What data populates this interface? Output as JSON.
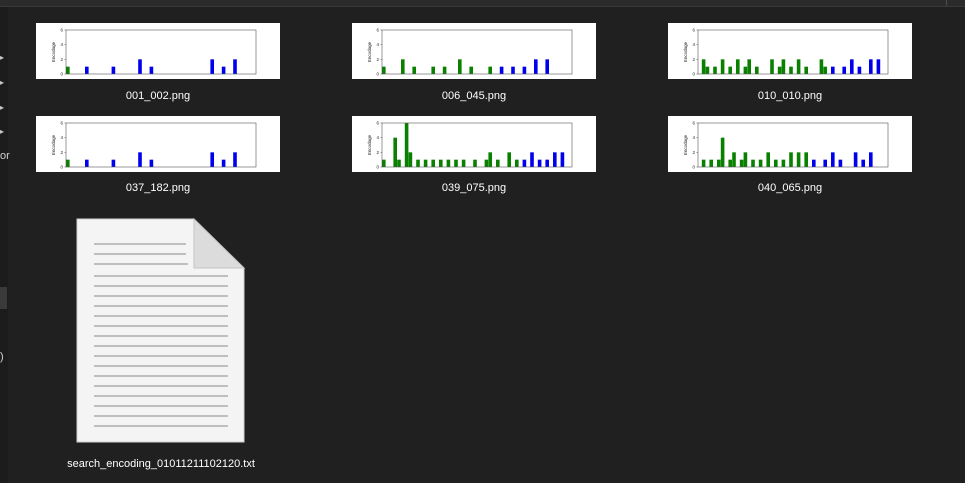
{
  "left_pane": {
    "text_1": "or",
    "text_2": ")"
  },
  "colors": {
    "green": "#0a8000",
    "blue": "#0000ee",
    "bg": "#202020"
  },
  "files": [
    {
      "name": "001_002.png",
      "ylabel": "Encodage",
      "yticks": [
        "6",
        "4",
        "2",
        "0"
      ],
      "bars": [
        [
          0,
          1,
          "g"
        ],
        [
          5,
          1,
          "b"
        ],
        [
          12,
          1,
          "b"
        ],
        [
          19,
          2,
          "b"
        ],
        [
          22,
          1,
          "b"
        ],
        [
          38,
          2,
          "b"
        ],
        [
          41,
          1,
          "b"
        ],
        [
          44,
          2,
          "b"
        ]
      ]
    },
    {
      "name": "006_045.png",
      "ylabel": "Encodage",
      "yticks": [
        "6",
        "4",
        "2",
        "0"
      ],
      "bars": [
        [
          0,
          1,
          "g"
        ],
        [
          5,
          2,
          "g"
        ],
        [
          8,
          1,
          "g"
        ],
        [
          13,
          1,
          "g"
        ],
        [
          16,
          1,
          "g"
        ],
        [
          20,
          2,
          "g"
        ],
        [
          23,
          1,
          "g"
        ],
        [
          28,
          1,
          "g"
        ],
        [
          31,
          1,
          "b"
        ],
        [
          34,
          1,
          "b"
        ],
        [
          37,
          1,
          "b"
        ],
        [
          40,
          2,
          "b"
        ],
        [
          43,
          2,
          "b"
        ]
      ]
    },
    {
      "name": "010_010.png",
      "ylabel": "Encodage",
      "yticks": [
        "6",
        "4",
        "2",
        "0"
      ],
      "bars": [
        [
          1,
          2,
          "g"
        ],
        [
          2,
          1,
          "g"
        ],
        [
          4,
          1,
          "g"
        ],
        [
          6,
          2,
          "g"
        ],
        [
          8,
          1,
          "g"
        ],
        [
          10,
          2,
          "g"
        ],
        [
          12,
          1,
          "g"
        ],
        [
          13,
          2,
          "g"
        ],
        [
          15,
          1,
          "g"
        ],
        [
          19,
          2,
          "g"
        ],
        [
          21,
          1,
          "g"
        ],
        [
          22,
          2,
          "g"
        ],
        [
          24,
          1,
          "g"
        ],
        [
          26,
          2,
          "g"
        ],
        [
          28,
          1,
          "g"
        ],
        [
          32,
          2,
          "g"
        ],
        [
          33,
          1,
          "g"
        ],
        [
          35,
          1,
          "b"
        ],
        [
          38,
          1,
          "b"
        ],
        [
          40,
          2,
          "b"
        ],
        [
          42,
          1,
          "b"
        ],
        [
          45,
          2,
          "b"
        ],
        [
          47,
          2,
          "b"
        ]
      ]
    },
    {
      "name": "037_182.png",
      "ylabel": "Encodage",
      "yticks": [
        "6",
        "4",
        "2",
        "0"
      ],
      "bars": [
        [
          0,
          1,
          "g"
        ],
        [
          5,
          1,
          "b"
        ],
        [
          12,
          1,
          "b"
        ],
        [
          19,
          2,
          "b"
        ],
        [
          22,
          1,
          "b"
        ],
        [
          38,
          2,
          "b"
        ],
        [
          41,
          1,
          "b"
        ],
        [
          44,
          2,
          "b"
        ]
      ]
    },
    {
      "name": "039_075.png",
      "ylabel": "Encodage",
      "yticks": [
        "6",
        "4",
        "2",
        "0"
      ],
      "bars": [
        [
          0,
          1,
          "g"
        ],
        [
          3,
          4,
          "g"
        ],
        [
          4,
          1,
          "g"
        ],
        [
          6,
          6,
          "g"
        ],
        [
          7,
          2,
          "g"
        ],
        [
          9,
          1,
          "g"
        ],
        [
          11,
          1,
          "g"
        ],
        [
          13,
          1,
          "g"
        ],
        [
          15,
          1,
          "g"
        ],
        [
          17,
          1,
          "g"
        ],
        [
          19,
          1,
          "g"
        ],
        [
          21,
          1,
          "g"
        ],
        [
          24,
          1,
          "g"
        ],
        [
          27,
          1,
          "g"
        ],
        [
          28,
          2,
          "g"
        ],
        [
          30,
          1,
          "g"
        ],
        [
          33,
          2,
          "g"
        ],
        [
          35,
          1,
          "g"
        ],
        [
          37,
          1,
          "b"
        ],
        [
          39,
          2,
          "b"
        ],
        [
          41,
          1,
          "b"
        ],
        [
          43,
          1,
          "b"
        ],
        [
          45,
          2,
          "b"
        ],
        [
          47,
          2,
          "b"
        ]
      ]
    },
    {
      "name": "040_065.png",
      "ylabel": "Encodage",
      "yticks": [
        "6",
        "4",
        "2",
        "0"
      ],
      "bars": [
        [
          1,
          1,
          "g"
        ],
        [
          3,
          1,
          "g"
        ],
        [
          5,
          1,
          "g"
        ],
        [
          6,
          4,
          "g"
        ],
        [
          8,
          1,
          "g"
        ],
        [
          9,
          2,
          "g"
        ],
        [
          11,
          1,
          "g"
        ],
        [
          12,
          2,
          "g"
        ],
        [
          14,
          1,
          "g"
        ],
        [
          16,
          1,
          "g"
        ],
        [
          18,
          2,
          "g"
        ],
        [
          20,
          1,
          "g"
        ],
        [
          22,
          1,
          "g"
        ],
        [
          24,
          2,
          "g"
        ],
        [
          26,
          2,
          "g"
        ],
        [
          28,
          2,
          "g"
        ],
        [
          30,
          1,
          "b"
        ],
        [
          33,
          1,
          "b"
        ],
        [
          35,
          2,
          "b"
        ],
        [
          37,
          1,
          "b"
        ],
        [
          41,
          2,
          "b"
        ],
        [
          43,
          1,
          "b"
        ],
        [
          45,
          2,
          "b"
        ]
      ]
    }
  ],
  "text_file": {
    "name": "search_encoding_01011211102120.txt"
  }
}
